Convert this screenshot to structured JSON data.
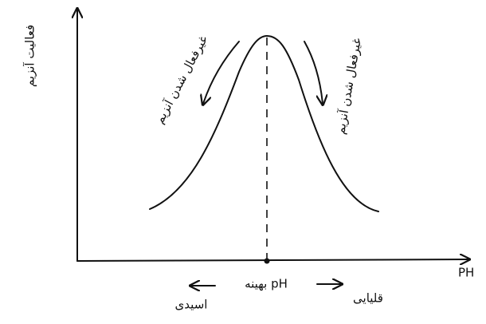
{
  "axes": {
    "y_label": "فعالیت آنزیم",
    "x_label": "PH"
  },
  "annotations": {
    "left_curve": "غیرفعال شدن آنزیم",
    "right_curve": "غیرفعال شدن آنزیم",
    "optimum": "pH بهینه",
    "acidic": "اسیدی",
    "basic": "قلیایی"
  }
}
